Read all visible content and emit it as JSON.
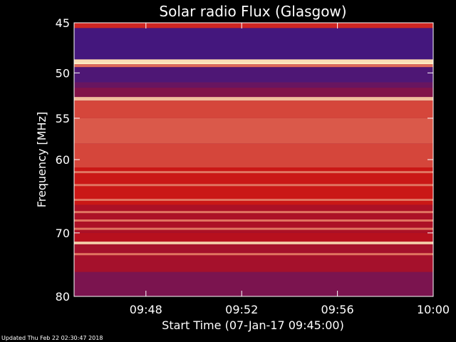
{
  "chart_data": {
    "type": "heatmap",
    "title": "Solar radio Flux (Glasgow)",
    "xlabel": "Start Time (07-Jan-17 09:45:00)",
    "ylabel": "Frequency [MHz]",
    "x_ticks": [
      "09:48",
      "09:52",
      "09:56",
      "10:00"
    ],
    "x_tick_minutes": [
      3,
      7,
      11,
      15
    ],
    "xlim_minutes": [
      0,
      15
    ],
    "y_scale": "log",
    "ylim": [
      45,
      80
    ],
    "y_ticks": [
      45,
      50,
      55,
      60,
      70,
      80
    ],
    "y_tick_labels": [
      "45",
      "50",
      "55",
      "60",
      "70",
      "80"
    ],
    "bands": [
      {
        "from": 45.0,
        "to": 45.5,
        "level": 0.55
      },
      {
        "from": 45.5,
        "to": 48.6,
        "level": 0.12
      },
      {
        "from": 48.6,
        "to": 48.9,
        "level": 0.95
      },
      {
        "from": 48.9,
        "to": 49.1,
        "level": 0.98
      },
      {
        "from": 49.1,
        "to": 49.4,
        "level": 0.7
      },
      {
        "from": 49.4,
        "to": 51.0,
        "level": 0.15
      },
      {
        "from": 51.0,
        "to": 51.6,
        "level": 0.22
      },
      {
        "from": 51.6,
        "to": 52.6,
        "level": 0.3
      },
      {
        "from": 52.6,
        "to": 53.0,
        "level": 0.88
      },
      {
        "from": 53.0,
        "to": 55.0,
        "level": 0.62
      },
      {
        "from": 55.0,
        "to": 58.0,
        "level": 0.66
      },
      {
        "from": 58.0,
        "to": 61.0,
        "level": 0.62
      },
      {
        "from": 61.0,
        "to": 66.0,
        "level": 0.52
      },
      {
        "from": 66.0,
        "to": 70.0,
        "level": 0.42
      },
      {
        "from": 70.0,
        "to": 71.3,
        "level": 0.45
      },
      {
        "from": 71.3,
        "to": 71.7,
        "level": 0.92
      },
      {
        "from": 71.7,
        "to": 76.0,
        "level": 0.4
      },
      {
        "from": 76.0,
        "to": 80.0,
        "level": 0.28
      }
    ],
    "emission_lines_mhz": [
      61.6,
      63.3,
      65.3,
      67.0,
      68.2,
      69.4,
      73.2
    ],
    "colors": {
      "low": "#1a1aa0",
      "mid": "#c80f0f",
      "high": "#fff5c8"
    }
  },
  "footer": {
    "updated": "Updated Thu Feb 22 02:30:47 2018"
  }
}
